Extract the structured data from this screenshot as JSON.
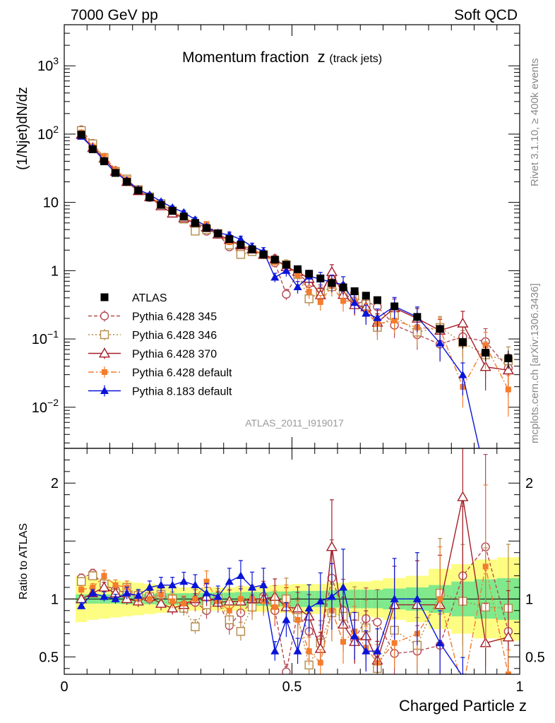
{
  "header": {
    "left": "7000 GeV pp",
    "right": "Soft QCD"
  },
  "side_labels": {
    "rivet": "Rivet 3.1.10, ≥ 400k events",
    "mcplots": "mcplots.cern.ch [arXiv:1306.3436]"
  },
  "chart_data": {
    "type": "scatter",
    "title": "Momentum fraction",
    "title_var": "z",
    "title_sub": "(track jets)",
    "analysis_label": "ATLAS_2011_I919017",
    "xlabel": "Charged Particle z",
    "ylabel_main": "(1/Njet)dN/dz",
    "ylabel_ratio": "Ratio to ATLAS",
    "xlim": [
      0,
      1
    ],
    "ylim_main": [
      0.0025,
      4000
    ],
    "ylim_ratio": [
      0.35,
      2.3
    ],
    "yscale_main": "log",
    "x_ticks": [
      {
        "value": 0,
        "label": "0"
      },
      {
        "value": 0.5,
        "label": "0.5"
      },
      {
        "value": 1,
        "label": "1"
      }
    ],
    "y_ticks_main": [
      {
        "value": 0.01,
        "base": "10",
        "exp": "−2"
      },
      {
        "value": 0.1,
        "base": "10",
        "exp": "−1"
      },
      {
        "value": 1,
        "base": "1",
        "exp": ""
      },
      {
        "value": 10,
        "base": "10",
        "exp": ""
      },
      {
        "value": 100,
        "base": "10",
        "exp": "2"
      },
      {
        "value": 1000,
        "base": "10",
        "exp": "3"
      }
    ],
    "y_ticks_ratio": [
      {
        "value": 0.5,
        "label": "0.5"
      },
      {
        "value": 1,
        "label": "1"
      },
      {
        "value": 2,
        "label": "2"
      }
    ],
    "legend_position": "lower-left",
    "x": [
      0.0375,
      0.0625,
      0.0875,
      0.1125,
      0.1375,
      0.1625,
      0.1875,
      0.2125,
      0.2375,
      0.2625,
      0.2875,
      0.3125,
      0.3375,
      0.3625,
      0.3875,
      0.4125,
      0.4375,
      0.4625,
      0.4875,
      0.5125,
      0.5375,
      0.5625,
      0.5875,
      0.6125,
      0.6375,
      0.6625,
      0.6875,
      0.725,
      0.775,
      0.825,
      0.875,
      0.925,
      0.975
    ],
    "band_edges": [
      0.025,
      0.05,
      0.075,
      0.1,
      0.125,
      0.15,
      0.175,
      0.2,
      0.225,
      0.25,
      0.275,
      0.3,
      0.325,
      0.35,
      0.375,
      0.4,
      0.425,
      0.45,
      0.475,
      0.5,
      0.525,
      0.55,
      0.575,
      0.6,
      0.625,
      0.65,
      0.675,
      0.7,
      0.75,
      0.8,
      0.85,
      0.9,
      0.95,
      1.0
    ],
    "band_green_halfwidth": [
      0.04,
      0.04,
      0.04,
      0.04,
      0.045,
      0.045,
      0.045,
      0.05,
      0.05,
      0.05,
      0.05,
      0.055,
      0.055,
      0.055,
      0.06,
      0.06,
      0.06,
      0.065,
      0.065,
      0.07,
      0.07,
      0.07,
      0.075,
      0.075,
      0.08,
      0.08,
      0.08,
      0.09,
      0.1,
      0.12,
      0.15,
      0.17,
      0.18
    ],
    "band_yellow_halfwidth": [
      0.2,
      0.18,
      0.17,
      0.16,
      0.15,
      0.14,
      0.13,
      0.12,
      0.11,
      0.1,
      0.1,
      0.1,
      0.1,
      0.1,
      0.11,
      0.11,
      0.11,
      0.12,
      0.12,
      0.13,
      0.13,
      0.13,
      0.14,
      0.14,
      0.15,
      0.15,
      0.16,
      0.18,
      0.2,
      0.26,
      0.3,
      0.34,
      0.36
    ],
    "series": [
      {
        "name": "ATLAS",
        "style": "data",
        "color": "#000000",
        "marker": "square-filled",
        "values": [
          98,
          60,
          40,
          27,
          20,
          15,
          11.8,
          9.2,
          7.5,
          6.2,
          5.0,
          4.2,
          3.5,
          2.9,
          2.4,
          2.05,
          1.72,
          1.45,
          1.22,
          1.05,
          0.9,
          0.77,
          0.66,
          0.57,
          0.5,
          0.43,
          0.37,
          0.3,
          0.21,
          0.14,
          0.09,
          0.063,
          0.052
        ],
        "rel_err": [
          0.03,
          0.03,
          0.03,
          0.03,
          0.04,
          0.04,
          0.04,
          0.05,
          0.05,
          0.05,
          0.05,
          0.06,
          0.06,
          0.06,
          0.07,
          0.07,
          0.07,
          0.08,
          0.08,
          0.08,
          0.09,
          0.09,
          0.1,
          0.1,
          0.1,
          0.11,
          0.12,
          0.12,
          0.14,
          0.16,
          0.2,
          0.25,
          0.3
        ]
      },
      {
        "name": "Pythia 6.428 345",
        "style": "mc",
        "color": "#b44a55",
        "marker": "circle-open",
        "dash": "5,3",
        "ratio": [
          1.18,
          1.22,
          1.12,
          1.08,
          1.05,
          1.02,
          1.0,
          1.03,
          1.0,
          0.95,
          0.97,
          0.9,
          0.98,
          0.77,
          0.88,
          0.97,
          1.02,
          0.9,
          0.37,
          0.88,
          0.72,
          0.65,
          1.18,
          0.9,
          0.65,
          0.83,
          0.8,
          0.53,
          0.55,
          0.6,
          1.2,
          1.45,
          0.72
        ],
        "rel_err": [
          0.03,
          0.03,
          0.04,
          0.04,
          0.05,
          0.05,
          0.05,
          0.06,
          0.06,
          0.07,
          0.08,
          0.08,
          0.09,
          0.1,
          0.11,
          0.12,
          0.13,
          0.15,
          0.18,
          0.2,
          0.22,
          0.25,
          0.28,
          0.3,
          0.3,
          0.32,
          0.35,
          0.35,
          0.4,
          0.45,
          0.5,
          0.55,
          0.6
        ]
      },
      {
        "name": "Pythia 6.428 346",
        "style": "mc",
        "color": "#b48a48",
        "marker": "square-open",
        "dash": "2,3",
        "ratio": [
          1.15,
          1.2,
          1.13,
          1.05,
          1.1,
          1.03,
          1.02,
          1.04,
          1.0,
          0.92,
          0.76,
          0.95,
          1.0,
          0.82,
          0.72,
          0.93,
          1.0,
          0.97,
          1.0,
          0.84,
          0.43,
          0.62,
          0.88,
          0.85,
          0.85,
          0.75,
          0.4,
          0.73,
          0.6,
          1.05,
          0.98,
          0.93,
          0.92
        ],
        "rel_err": [
          0.03,
          0.03,
          0.04,
          0.04,
          0.05,
          0.05,
          0.05,
          0.06,
          0.06,
          0.07,
          0.08,
          0.08,
          0.09,
          0.1,
          0.11,
          0.12,
          0.13,
          0.15,
          0.18,
          0.2,
          0.22,
          0.25,
          0.28,
          0.3,
          0.3,
          0.32,
          0.35,
          0.35,
          0.4,
          0.45,
          0.5,
          0.55,
          0.6
        ]
      },
      {
        "name": "Pythia 6.428 370",
        "style": "mc",
        "color": "#a41e28",
        "marker": "triangle-open",
        "dash": "",
        "ratio": [
          1.0,
          1.05,
          1.1,
          1.05,
          1.0,
          0.98,
          1.02,
          0.96,
          0.92,
          0.95,
          1.0,
          1.02,
          0.97,
          0.98,
          0.98,
          1.0,
          1.0,
          1.02,
          0.93,
          0.92,
          0.85,
          0.57,
          1.45,
          0.78,
          0.63,
          0.68,
          0.47,
          0.95,
          0.95,
          0.95,
          1.88,
          0.62,
          0.67
        ],
        "rel_err": [
          0.03,
          0.03,
          0.04,
          0.04,
          0.05,
          0.05,
          0.05,
          0.06,
          0.06,
          0.07,
          0.08,
          0.08,
          0.09,
          0.1,
          0.11,
          0.12,
          0.13,
          0.15,
          0.18,
          0.2,
          0.22,
          0.25,
          0.28,
          0.3,
          0.3,
          0.32,
          0.35,
          0.35,
          0.4,
          0.45,
          0.5,
          0.55,
          0.6
        ]
      },
      {
        "name": "Pythia 6.428 default",
        "style": "mc",
        "color": "#f47c2c",
        "marker": "square-filled",
        "dash": "8,3,2,3",
        "ratio": [
          1.08,
          1.1,
          1.2,
          1.12,
          1.1,
          1.0,
          1.0,
          1.04,
          0.98,
          0.96,
          1.0,
          1.15,
          0.98,
          0.9,
          1.0,
          1.0,
          0.98,
          0.93,
          0.95,
          0.82,
          0.55,
          0.45,
          0.9,
          0.63,
          0.72,
          0.58,
          0.45,
          0.62,
          0.7,
          1.0,
          0.22,
          1.28,
          0.35
        ],
        "rel_err": [
          0.03,
          0.03,
          0.04,
          0.04,
          0.05,
          0.05,
          0.05,
          0.06,
          0.06,
          0.07,
          0.08,
          0.08,
          0.09,
          0.1,
          0.11,
          0.12,
          0.13,
          0.15,
          0.18,
          0.2,
          0.22,
          0.25,
          0.28,
          0.3,
          0.3,
          0.32,
          0.35,
          0.35,
          0.4,
          0.45,
          0.5,
          0.55,
          0.6
        ]
      },
      {
        "name": "Pythia 8.183 default",
        "style": "mc",
        "color": "#0a14d8",
        "marker": "triangle-filled",
        "dash": "",
        "ratio": [
          0.94,
          1.05,
          1.02,
          1.0,
          1.05,
          1.03,
          1.1,
          1.12,
          1.12,
          1.15,
          1.12,
          1.05,
          1.02,
          1.15,
          1.2,
          1.1,
          1.12,
          0.55,
          0.82,
          0.55,
          0.92,
          0.98,
          1.02,
          1.1,
          0.68,
          0.55,
          0.55,
          1.0,
          1.0,
          0.62,
          0.33,
          0.0,
          0.0
        ],
        "rel_err": [
          0.03,
          0.03,
          0.04,
          0.04,
          0.05,
          0.05,
          0.05,
          0.06,
          0.06,
          0.07,
          0.08,
          0.08,
          0.09,
          0.1,
          0.11,
          0.12,
          0.13,
          0.15,
          0.18,
          0.2,
          0.22,
          0.25,
          0.28,
          0.3,
          0.3,
          0.32,
          0.35,
          0.35,
          0.4,
          0.45,
          0.5,
          0.55,
          0.6
        ]
      }
    ]
  }
}
